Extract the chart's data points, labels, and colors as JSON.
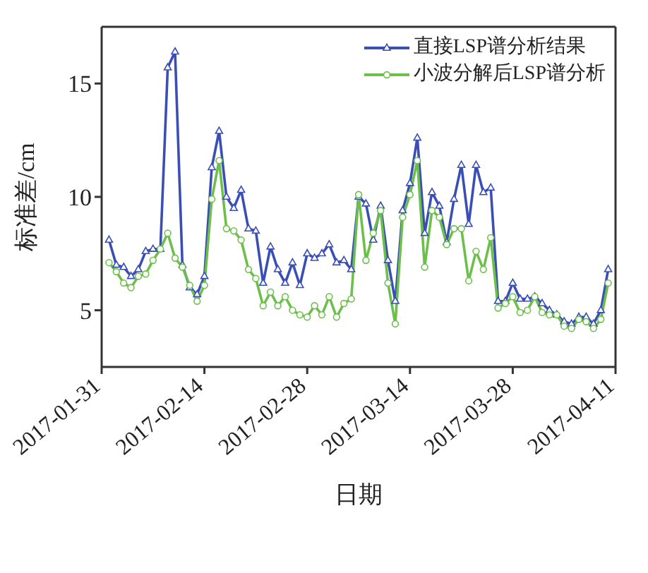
{
  "chart_data": {
    "type": "line",
    "xlabel": "日期",
    "ylabel": "标准差/cm",
    "x": [
      "2017-02-01",
      "2017-02-02",
      "2017-02-03",
      "2017-02-04",
      "2017-02-05",
      "2017-02-06",
      "2017-02-07",
      "2017-02-08",
      "2017-02-09",
      "2017-02-10",
      "2017-02-11",
      "2017-02-12",
      "2017-02-13",
      "2017-02-14",
      "2017-02-15",
      "2017-02-16",
      "2017-02-17",
      "2017-02-18",
      "2017-02-19",
      "2017-02-20",
      "2017-02-21",
      "2017-02-22",
      "2017-02-23",
      "2017-02-24",
      "2017-02-25",
      "2017-02-26",
      "2017-02-27",
      "2017-02-28",
      "2017-03-01",
      "2017-03-02",
      "2017-03-03",
      "2017-03-04",
      "2017-03-05",
      "2017-03-06",
      "2017-03-07",
      "2017-03-08",
      "2017-03-09",
      "2017-03-10",
      "2017-03-11",
      "2017-03-12",
      "2017-03-13",
      "2017-03-14",
      "2017-03-15",
      "2017-03-16",
      "2017-03-17",
      "2017-03-18",
      "2017-03-19",
      "2017-03-20",
      "2017-03-21",
      "2017-03-22",
      "2017-03-23",
      "2017-03-24",
      "2017-03-25",
      "2017-03-26",
      "2017-03-27",
      "2017-03-28",
      "2017-03-29",
      "2017-03-30",
      "2017-03-31",
      "2017-04-01",
      "2017-04-02",
      "2017-04-03",
      "2017-04-04",
      "2017-04-05",
      "2017-04-06",
      "2017-04-07",
      "2017-04-08",
      "2017-04-09",
      "2017-04-10"
    ],
    "series": [
      {
        "name": "直接LSP谱分析结果",
        "color": "#3a4fb5",
        "marker": "triangle",
        "values": [
          8.1,
          7.0,
          6.9,
          6.5,
          6.8,
          7.6,
          7.7,
          7.7,
          15.7,
          16.4,
          7.0,
          6.0,
          5.7,
          6.5,
          11.3,
          12.9,
          10.0,
          9.5,
          10.3,
          8.6,
          8.5,
          6.2,
          7.8,
          6.8,
          6.2,
          7.1,
          6.1,
          7.5,
          7.3,
          7.5,
          7.9,
          7.1,
          7.2,
          6.8,
          10.0,
          9.7,
          8.1,
          9.6,
          7.2,
          5.4,
          9.4,
          10.6,
          12.6,
          8.4,
          10.2,
          9.6,
          8.0,
          9.9,
          11.4,
          8.8,
          11.4,
          10.2,
          10.4,
          5.4,
          5.4,
          6.2,
          5.5,
          5.5,
          5.6,
          5.3,
          5.0,
          4.8,
          4.5,
          4.4,
          4.7,
          4.7,
          4.4,
          5.0,
          6.8
        ]
      },
      {
        "name": "小波分解后LSP谱分析",
        "color": "#6cc04a",
        "marker": "circle",
        "values": [
          7.1,
          6.7,
          6.2,
          6.0,
          6.5,
          6.6,
          7.2,
          7.7,
          8.4,
          7.3,
          6.9,
          6.1,
          5.4,
          6.1,
          9.9,
          11.6,
          8.6,
          8.5,
          8.1,
          6.8,
          6.4,
          5.2,
          5.8,
          5.2,
          5.6,
          5.0,
          4.8,
          4.7,
          5.2,
          4.8,
          5.6,
          4.7,
          5.3,
          5.5,
          10.1,
          7.2,
          8.4,
          9.4,
          6.2,
          4.4,
          9.1,
          10.1,
          11.6,
          6.9,
          9.4,
          9.1,
          7.9,
          8.6,
          8.6,
          6.3,
          7.6,
          6.8,
          8.2,
          5.1,
          5.3,
          5.6,
          4.9,
          5.0,
          5.6,
          4.9,
          4.8,
          4.8,
          4.3,
          4.2,
          4.6,
          4.5,
          4.2,
          4.6,
          6.2
        ]
      }
    ],
    "xlim": [
      "2017-01-31",
      "2017-04-11"
    ],
    "xticks": [
      "2017-01-31",
      "2017-02-14",
      "2017-02-28",
      "2017-03-14",
      "2017-03-28",
      "2017-04-11"
    ],
    "ylim": [
      2.5,
      17.5
    ],
    "yticks": [
      5,
      10,
      15
    ],
    "grid": false,
    "legend": "top right",
    "line_style": "solid"
  }
}
